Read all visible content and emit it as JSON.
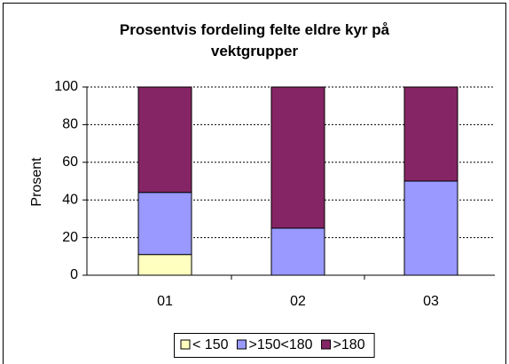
{
  "chart_data": {
    "type": "bar",
    "stacked": true,
    "title": "Prosentvis fordeling felte eldre kyr på vektgrupper",
    "ylabel": "Prosent",
    "categories": [
      "01",
      "02",
      "03"
    ],
    "series": [
      {
        "name": "< 150",
        "color": "#ffffc0",
        "values": [
          11,
          0,
          0
        ]
      },
      {
        "name": ">150<180",
        "color": "#9999ff",
        "values": [
          33,
          25,
          50
        ]
      },
      {
        "name": ">180",
        "color": "#862565",
        "values": [
          56,
          75,
          50
        ]
      }
    ],
    "ylim": [
      0,
      100
    ],
    "yticks": [
      0,
      20,
      40,
      60,
      80,
      100
    ],
    "grid": true
  }
}
